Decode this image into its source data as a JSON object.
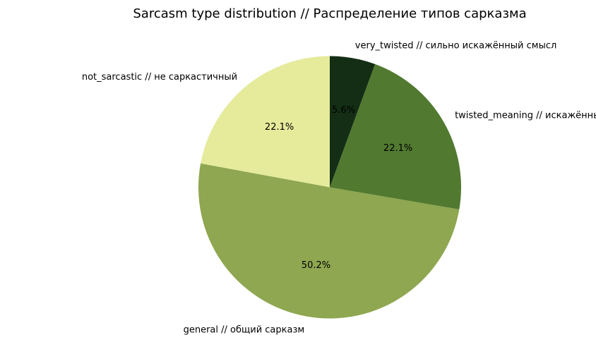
{
  "chart_data": {
    "type": "pie",
    "title": "Sarcasm type distribution // Распределение типов сарказма",
    "start_angle_deg": 90,
    "direction": "counterclockwise",
    "slices": [
      {
        "label": "not_sarcastic // не саркастичный",
        "value": 22.1,
        "pct_label": "22.1%",
        "color": "#e5eb9b"
      },
      {
        "label": "general // общий сарказм",
        "value": 50.2,
        "pct_label": "50.2%",
        "color": "#8ea750"
      },
      {
        "label": "twisted_meaning // искажённый смысл",
        "value": 22.1,
        "pct_label": "22.1%",
        "color": "#517930"
      },
      {
        "label": "very_twisted // сильно искажённый смысл",
        "value": 5.6,
        "pct_label": "5.6%",
        "color": "#142e15"
      }
    ]
  }
}
